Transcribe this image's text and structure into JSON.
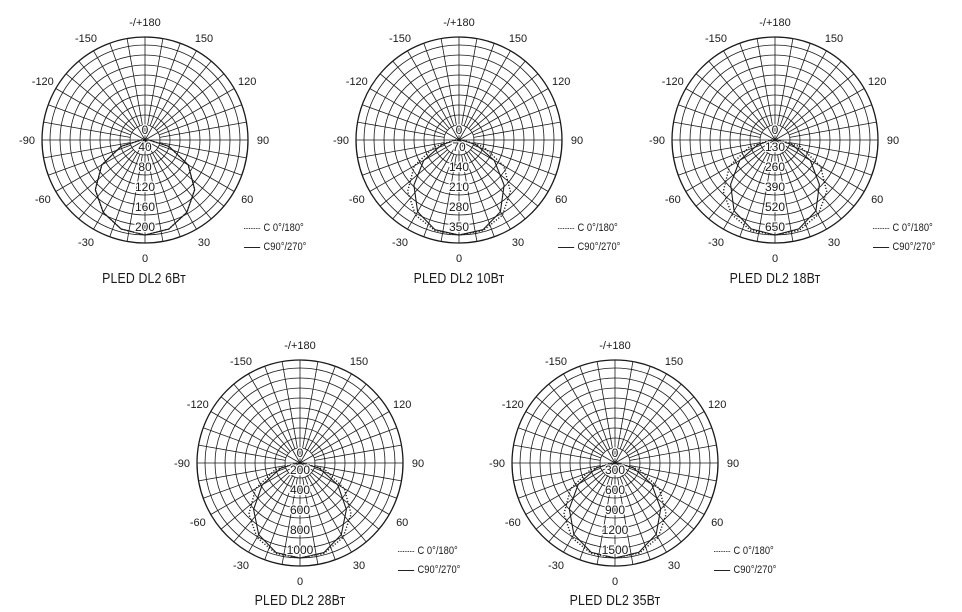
{
  "chart_data": [
    {
      "type": "polar",
      "title": "PLED DL2 6Вт",
      "angle_labels": [
        "-/+180",
        "150",
        "120",
        "90",
        "60",
        "30",
        "0",
        "-30",
        "-60",
        "-90",
        "-120",
        "-150"
      ],
      "radial_labels": [
        "0",
        "40",
        "80",
        "120",
        "160",
        "200"
      ],
      "rmax": 200,
      "series": [
        {
          "name": "C  0°/180°",
          "style": "dotted",
          "values": [
            [
              0,
              200
            ],
            [
              15,
              194
            ],
            [
              30,
              176
            ],
            [
              45,
              148
            ],
            [
              60,
              105
            ],
            [
              75,
              52
            ],
            [
              90,
              8
            ]
          ]
        },
        {
          "name": "C90°/270°",
          "style": "solid",
          "values": [
            [
              0,
              200
            ],
            [
              15,
              194
            ],
            [
              30,
              176
            ],
            [
              45,
              148
            ],
            [
              60,
              105
            ],
            [
              75,
              52
            ],
            [
              90,
              8
            ]
          ]
        }
      ]
    },
    {
      "type": "polar",
      "title": "PLED DL2 10Вт",
      "angle_labels": [
        "-/+180",
        "150",
        "120",
        "90",
        "60",
        "30",
        "0",
        "-30",
        "-60",
        "-90",
        "-120",
        "-150"
      ],
      "radial_labels": [
        "0",
        "70",
        "140",
        "210",
        "280",
        "350"
      ],
      "rmax": 350,
      "series": [
        {
          "name": "C  0°/180°",
          "style": "dotted",
          "values": [
            [
              0,
              350
            ],
            [
              15,
              345
            ],
            [
              30,
              320
            ],
            [
              45,
              268
            ],
            [
              60,
              190
            ],
            [
              75,
              92
            ],
            [
              90,
              12
            ]
          ]
        },
        {
          "name": "C90°/270°",
          "style": "solid",
          "values": [
            [
              0,
              350
            ],
            [
              15,
              342
            ],
            [
              30,
              305
            ],
            [
              45,
              235
            ],
            [
              60,
              150
            ],
            [
              75,
              65
            ],
            [
              90,
              8
            ]
          ]
        }
      ]
    },
    {
      "type": "polar",
      "title": "PLED DL2 18Вт",
      "angle_labels": [
        "-/+180",
        "150",
        "120",
        "90",
        "60",
        "30",
        "0",
        "-30",
        "-60",
        "-90",
        "-120",
        "-150"
      ],
      "radial_labels": [
        "0",
        "130",
        "260",
        "390",
        "520",
        "650"
      ],
      "rmax": 650,
      "series": [
        {
          "name": "C  0°/180°",
          "style": "dotted",
          "values": [
            [
              0,
              650
            ],
            [
              15,
              640
            ],
            [
              30,
              590
            ],
            [
              45,
              500
            ],
            [
              60,
              360
            ],
            [
              75,
              180
            ],
            [
              90,
              25
            ]
          ]
        },
        {
          "name": "C90°/270°",
          "style": "solid",
          "values": [
            [
              0,
              650
            ],
            [
              15,
              630
            ],
            [
              30,
              560
            ],
            [
              45,
              430
            ],
            [
              60,
              280
            ],
            [
              75,
              120
            ],
            [
              90,
              15
            ]
          ]
        }
      ]
    },
    {
      "type": "polar",
      "title": "PLED DL2 28Вт",
      "angle_labels": [
        "-/+180",
        "150",
        "120",
        "90",
        "60",
        "30",
        "0",
        "-30",
        "-60",
        "-90",
        "-120",
        "-150"
      ],
      "radial_labels": [
        "0",
        "200",
        "400",
        "600",
        "800",
        "1000"
      ],
      "rmax": 1000,
      "series": [
        {
          "name": "C  0°/180°",
          "style": "dotted",
          "values": [
            [
              0,
              1000
            ],
            [
              15,
              985
            ],
            [
              30,
              905
            ],
            [
              45,
              760
            ],
            [
              60,
              540
            ],
            [
              75,
              270
            ],
            [
              90,
              30
            ]
          ]
        },
        {
          "name": "C90°/270°",
          "style": "solid",
          "values": [
            [
              0,
              1000
            ],
            [
              15,
              975
            ],
            [
              30,
              870
            ],
            [
              45,
              690
            ],
            [
              60,
              460
            ],
            [
              75,
              210
            ],
            [
              90,
              20
            ]
          ]
        }
      ]
    },
    {
      "type": "polar",
      "title": "PLED DL2 35Вт",
      "angle_labels": [
        "-/+180",
        "150",
        "120",
        "90",
        "60",
        "30",
        "0",
        "-30",
        "-60",
        "-90",
        "-120",
        "-150"
      ],
      "radial_labels": [
        "0",
        "300",
        "600",
        "900",
        "1200",
        "1500"
      ],
      "rmax": 1500,
      "series": [
        {
          "name": "C  0°/180°",
          "style": "dotted",
          "values": [
            [
              0,
              1500
            ],
            [
              15,
              1475
            ],
            [
              30,
              1360
            ],
            [
              45,
              1140
            ],
            [
              60,
              810
            ],
            [
              75,
              400
            ],
            [
              90,
              45
            ]
          ]
        },
        {
          "name": "C90°/270°",
          "style": "solid",
          "values": [
            [
              0,
              1500
            ],
            [
              15,
              1460
            ],
            [
              30,
              1300
            ],
            [
              45,
              1020
            ],
            [
              60,
              670
            ],
            [
              75,
              300
            ],
            [
              90,
              30
            ]
          ]
        }
      ]
    }
  ]
}
